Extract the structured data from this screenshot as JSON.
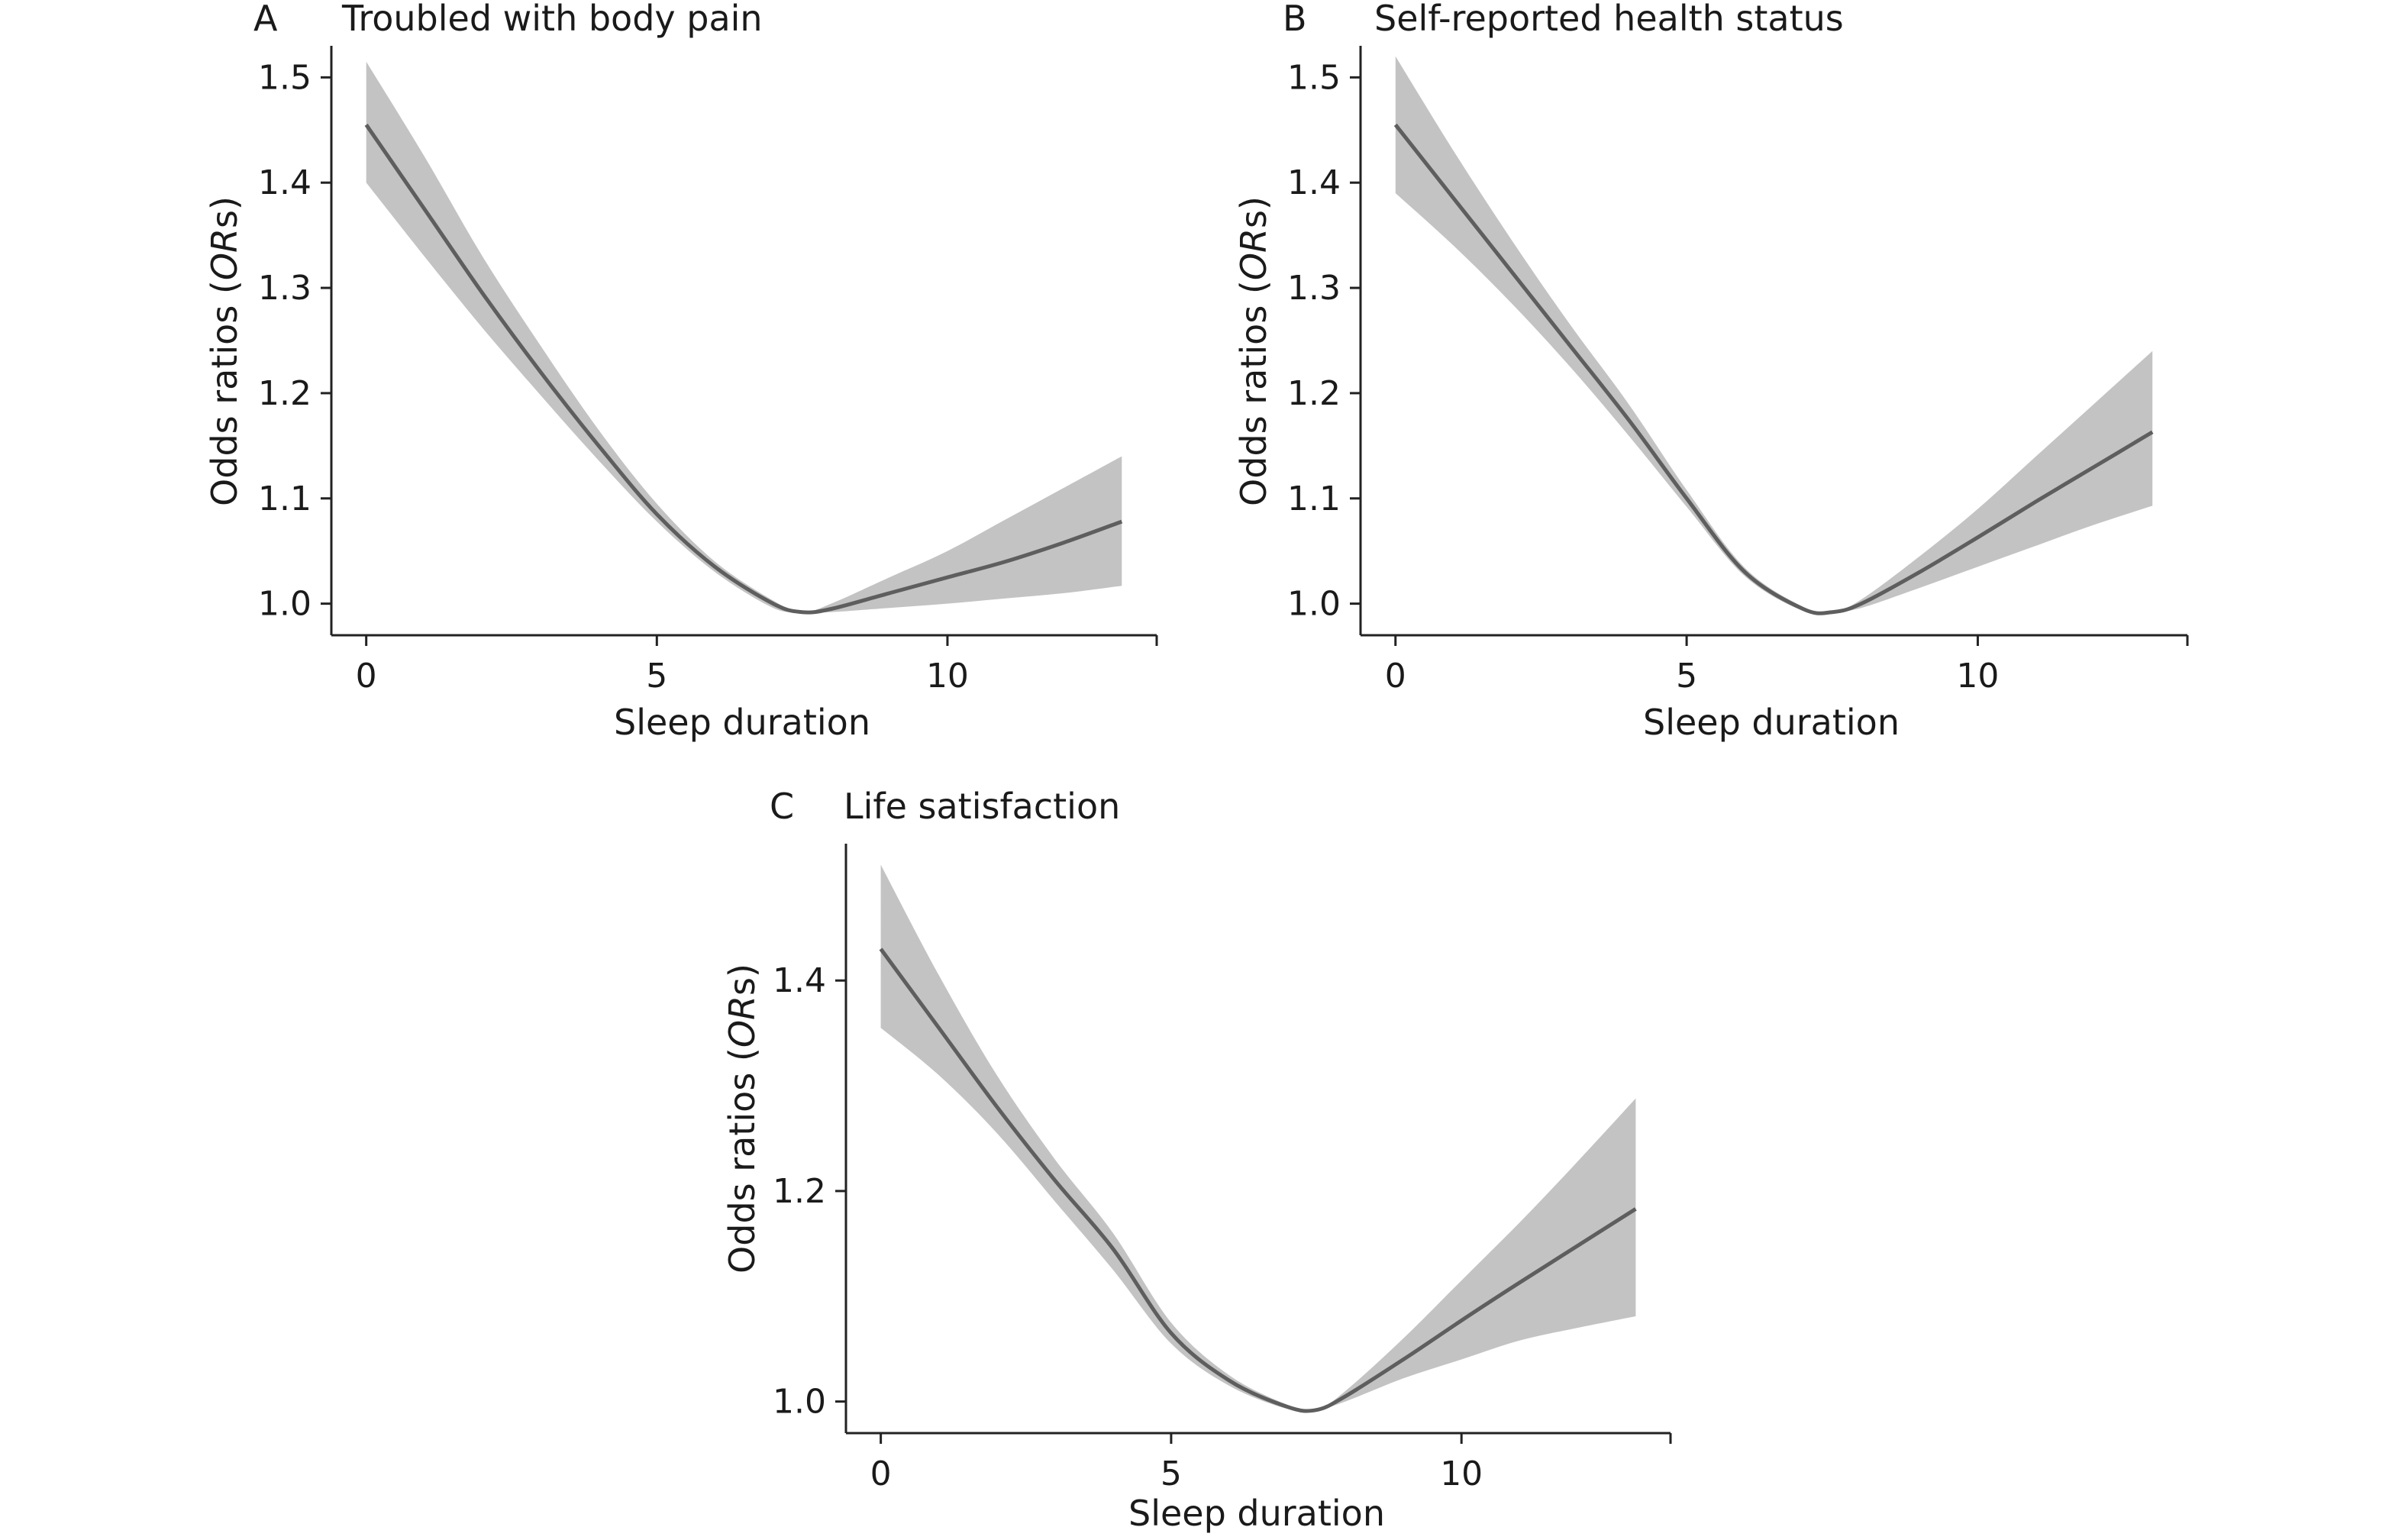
{
  "chart_data": [
    {
      "type": "line",
      "panel_label": "A",
      "title": "Troubled with body pain",
      "xlabel": "Sleep duration",
      "ylabel_prefix": "Odds ratios (",
      "ylabel_italic": "OR",
      "ylabel_suffix": "s)",
      "xlim": [
        -0.6,
        13.6
      ],
      "ylim": [
        0.97,
        1.53
      ],
      "x_ticks": [
        0,
        5,
        10
      ],
      "y_ticks": [
        1.0,
        1.1,
        1.2,
        1.3,
        1.4,
        1.5
      ],
      "y_tick_labels": [
        "1.0",
        "1.1",
        "1.2",
        "1.3",
        "1.4",
        "1.5"
      ],
      "grid": false,
      "series": [
        {
          "x": [
            0,
            1,
            2,
            3,
            4,
            5,
            6,
            7,
            7.5,
            8,
            9,
            10,
            11,
            12,
            13
          ],
          "y": [
            1.455,
            1.375,
            1.295,
            1.22,
            1.15,
            1.085,
            1.035,
            1.0,
            0.992,
            0.995,
            1.01,
            1.025,
            1.04,
            1.058,
            1.078
          ],
          "lower": [
            1.4,
            1.33,
            1.262,
            1.198,
            1.136,
            1.078,
            1.03,
            0.996,
            0.992,
            0.992,
            0.996,
            1.0,
            1.005,
            1.01,
            1.017
          ],
          "upper": [
            1.515,
            1.425,
            1.33,
            1.245,
            1.165,
            1.095,
            1.04,
            1.003,
            0.992,
            1.0,
            1.025,
            1.05,
            1.08,
            1.11,
            1.14
          ]
        }
      ]
    },
    {
      "type": "line",
      "panel_label": "B",
      "title": "Self-reported health status",
      "xlabel": "Sleep duration",
      "ylabel_prefix": "Odds ratios (",
      "ylabel_italic": "OR",
      "ylabel_suffix": "s)",
      "xlim": [
        -0.6,
        13.6
      ],
      "ylim": [
        0.97,
        1.53
      ],
      "x_ticks": [
        0,
        5,
        10
      ],
      "y_ticks": [
        1.0,
        1.1,
        1.2,
        1.3,
        1.4,
        1.5
      ],
      "y_tick_labels": [
        "1.0",
        "1.1",
        "1.2",
        "1.3",
        "1.4",
        "1.5"
      ],
      "grid": false,
      "series": [
        {
          "x": [
            0,
            1,
            2,
            3,
            4,
            5,
            6,
            7,
            7.5,
            8,
            9,
            10,
            11,
            12,
            13
          ],
          "y": [
            1.455,
            1.385,
            1.315,
            1.245,
            1.175,
            1.1,
            1.03,
            0.995,
            0.992,
            1.0,
            1.03,
            1.063,
            1.097,
            1.13,
            1.163
          ],
          "lower": [
            1.39,
            1.34,
            1.285,
            1.225,
            1.16,
            1.092,
            1.026,
            0.993,
            0.992,
            0.996,
            1.015,
            1.035,
            1.055,
            1.075,
            1.093
          ],
          "upper": [
            1.52,
            1.43,
            1.345,
            1.265,
            1.19,
            1.108,
            1.034,
            0.997,
            0.992,
            1.004,
            1.045,
            1.09,
            1.14,
            1.19,
            1.24
          ]
        }
      ]
    },
    {
      "type": "line",
      "panel_label": "C",
      "title": "Life satisfaction",
      "xlabel": "Sleep duration",
      "ylabel_prefix": "Odds ratios (",
      "ylabel_italic": "OR",
      "ylabel_suffix": "s)",
      "xlim": [
        -0.6,
        13.6
      ],
      "ylim": [
        0.97,
        1.53
      ],
      "x_ticks": [
        0,
        5,
        10
      ],
      "y_ticks": [
        1.0,
        1.2,
        1.4
      ],
      "y_tick_labels": [
        "1.0",
        "1.2",
        "1.4"
      ],
      "grid": false,
      "series": [
        {
          "x": [
            0,
            1,
            2,
            3,
            4,
            5,
            6,
            7,
            7.5,
            8,
            9,
            10,
            11,
            12,
            13
          ],
          "y": [
            1.43,
            1.355,
            1.28,
            1.21,
            1.145,
            1.065,
            1.02,
            0.995,
            0.992,
            1.005,
            1.04,
            1.077,
            1.113,
            1.148,
            1.183
          ],
          "lower": [
            1.355,
            1.31,
            1.255,
            1.19,
            1.125,
            1.055,
            1.015,
            0.993,
            0.992,
            1.0,
            1.022,
            1.04,
            1.058,
            1.07,
            1.081
          ],
          "upper": [
            1.51,
            1.405,
            1.31,
            1.23,
            1.16,
            1.075,
            1.025,
            0.997,
            0.992,
            1.01,
            1.06,
            1.115,
            1.17,
            1.228,
            1.288
          ]
        }
      ]
    }
  ]
}
